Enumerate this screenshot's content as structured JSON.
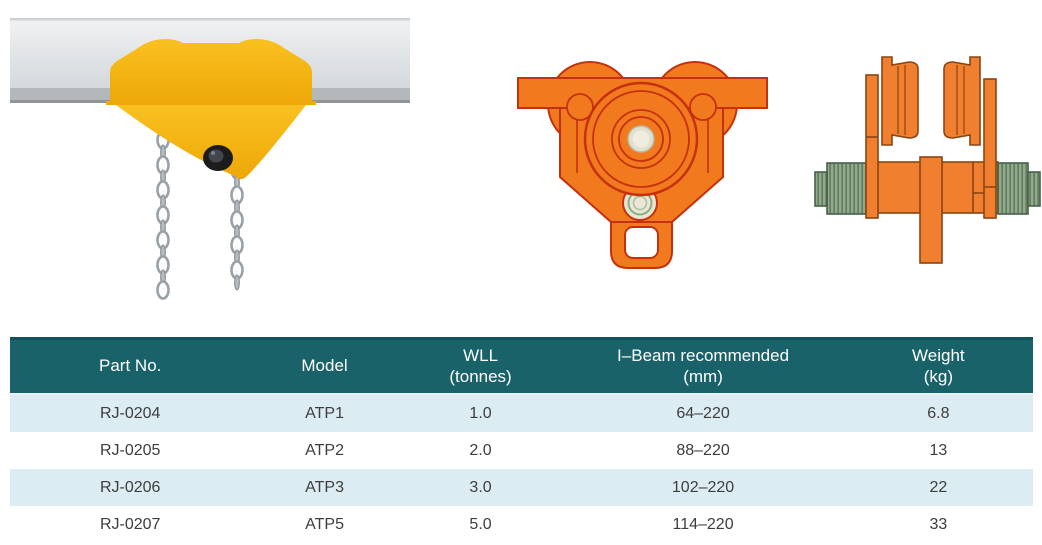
{
  "figures": {
    "photo": {
      "name": "yellow plain trolley clamped on I-beam with hand chain"
    },
    "front_view": {
      "name": "plain trolley front view technical drawing"
    },
    "side_view": {
      "name": "plain trolley side view technical drawing"
    },
    "palette": {
      "trolley_yellow": "#f5b411",
      "beam_gray": "#dcdfe1",
      "drawing_orange": "#f17a1e",
      "drawing_outline": "#c5310e",
      "side_outline": "#8a4512",
      "thread_green": "#8fa98a"
    }
  },
  "spec_table": {
    "columns": [
      {
        "lines": [
          "Part No."
        ]
      },
      {
        "lines": [
          "Model"
        ]
      },
      {
        "lines": [
          "WLL",
          "(tonnes)"
        ]
      },
      {
        "lines": [
          "I–Beam recommended",
          "(mm)"
        ]
      },
      {
        "lines": [
          "Weight",
          "(kg)"
        ]
      }
    ],
    "rows": [
      {
        "part_no": "RJ-0204",
        "model": "ATP1",
        "wll_tonnes": "1.0",
        "i_beam_mm": "64–220",
        "weight_kg": "6.8"
      },
      {
        "part_no": "RJ-0205",
        "model": "ATP2",
        "wll_tonnes": "2.0",
        "i_beam_mm": "88–220",
        "weight_kg": "13"
      },
      {
        "part_no": "RJ-0206",
        "model": "ATP3",
        "wll_tonnes": "3.0",
        "i_beam_mm": "102–220",
        "weight_kg": "22"
      },
      {
        "part_no": "RJ-0207",
        "model": "ATP5",
        "wll_tonnes": "5.0",
        "i_beam_mm": "114–220",
        "weight_kg": "33"
      }
    ],
    "colors": {
      "header_bg": "#1a6269",
      "header_border_top": "#11525c",
      "header_text": "#ffffff",
      "row_alt": "#dcecf3",
      "row": "#ffffff",
      "text": "#3d3d3d"
    }
  }
}
